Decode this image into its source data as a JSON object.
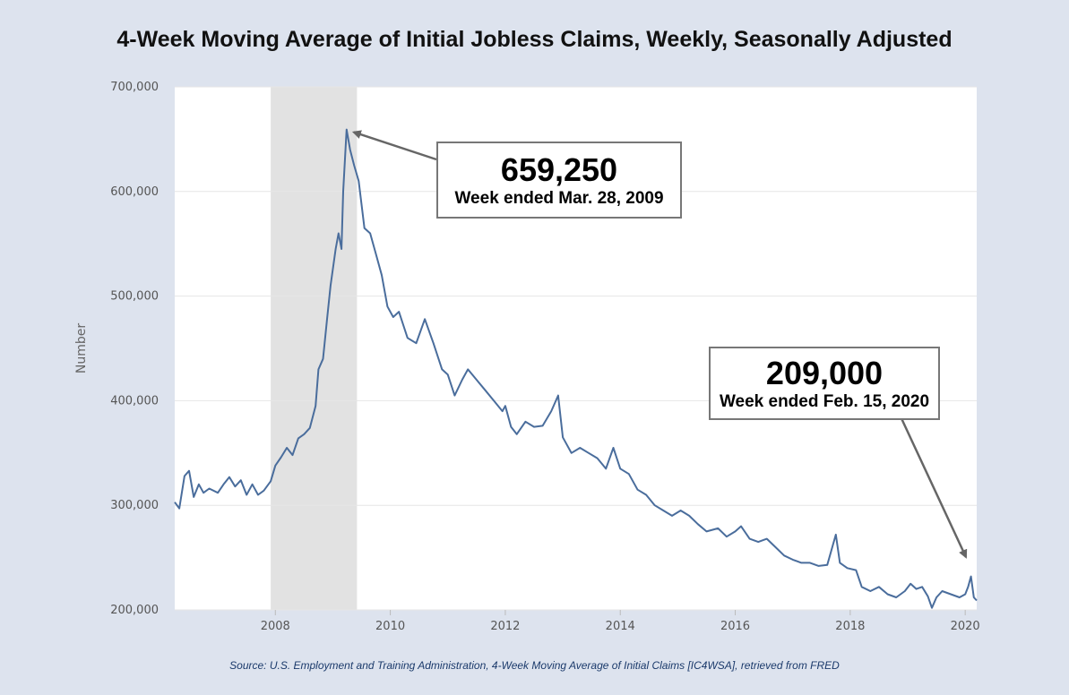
{
  "chart_data": {
    "type": "line",
    "title": "4-Week Moving Average of Initial Jobless Claims, Weekly, Seasonally Adjusted",
    "ylabel": "Number",
    "xlabel": "",
    "xlim": [
      2006.25,
      2020.2
    ],
    "ylim": [
      200000,
      700000
    ],
    "y_ticks": [
      200000,
      300000,
      400000,
      500000,
      600000,
      700000
    ],
    "y_tick_labels": [
      "200,000",
      "300,000",
      "400,000",
      "500,000",
      "600,000",
      "700,000"
    ],
    "x_ticks": [
      2008,
      2010,
      2012,
      2014,
      2016,
      2018,
      2020
    ],
    "x_tick_labels": [
      "2008",
      "2010",
      "2012",
      "2014",
      "2016",
      "2018",
      "2020"
    ],
    "grid": "horizontal",
    "line_color": "#4a6d9c",
    "recession_shading": {
      "start": 2007.92,
      "end": 2009.42,
      "color": "#e2e2e2"
    },
    "series": [
      {
        "values": [
          [
            2006.25,
            303000
          ],
          [
            2006.33,
            297000
          ],
          [
            2006.42,
            328000
          ],
          [
            2006.5,
            333000
          ],
          [
            2006.58,
            308000
          ],
          [
            2006.67,
            320000
          ],
          [
            2006.75,
            312000
          ],
          [
            2006.85,
            316000
          ],
          [
            2007.0,
            312000
          ],
          [
            2007.1,
            320000
          ],
          [
            2007.2,
            327000
          ],
          [
            2007.3,
            318000
          ],
          [
            2007.4,
            324000
          ],
          [
            2007.5,
            310000
          ],
          [
            2007.6,
            320000
          ],
          [
            2007.7,
            310000
          ],
          [
            2007.8,
            314000
          ],
          [
            2007.92,
            323000
          ],
          [
            2008.0,
            338000
          ],
          [
            2008.1,
            346000
          ],
          [
            2008.2,
            355000
          ],
          [
            2008.3,
            348000
          ],
          [
            2008.4,
            364000
          ],
          [
            2008.5,
            368000
          ],
          [
            2008.6,
            374000
          ],
          [
            2008.7,
            395000
          ],
          [
            2008.75,
            430000
          ],
          [
            2008.83,
            440000
          ],
          [
            2008.9,
            478000
          ],
          [
            2008.96,
            510000
          ],
          [
            2009.05,
            545000
          ],
          [
            2009.1,
            560000
          ],
          [
            2009.15,
            545000
          ],
          [
            2009.18,
            600000
          ],
          [
            2009.24,
            659250
          ],
          [
            2009.3,
            640000
          ],
          [
            2009.37,
            625000
          ],
          [
            2009.45,
            610000
          ],
          [
            2009.55,
            565000
          ],
          [
            2009.65,
            560000
          ],
          [
            2009.75,
            540000
          ],
          [
            2009.85,
            520000
          ],
          [
            2009.95,
            490000
          ],
          [
            2010.05,
            480000
          ],
          [
            2010.15,
            485000
          ],
          [
            2010.3,
            460000
          ],
          [
            2010.45,
            455000
          ],
          [
            2010.6,
            478000
          ],
          [
            2010.75,
            455000
          ],
          [
            2010.9,
            430000
          ],
          [
            2011.0,
            425000
          ],
          [
            2011.12,
            405000
          ],
          [
            2011.25,
            420000
          ],
          [
            2011.35,
            430000
          ],
          [
            2011.5,
            420000
          ],
          [
            2011.65,
            410000
          ],
          [
            2011.8,
            400000
          ],
          [
            2011.95,
            390000
          ],
          [
            2012.0,
            395000
          ],
          [
            2012.1,
            375000
          ],
          [
            2012.2,
            368000
          ],
          [
            2012.35,
            380000
          ],
          [
            2012.5,
            375000
          ],
          [
            2012.65,
            376000
          ],
          [
            2012.8,
            390000
          ],
          [
            2012.92,
            405000
          ],
          [
            2013.0,
            365000
          ],
          [
            2013.15,
            350000
          ],
          [
            2013.3,
            355000
          ],
          [
            2013.45,
            350000
          ],
          [
            2013.6,
            345000
          ],
          [
            2013.75,
            335000
          ],
          [
            2013.88,
            355000
          ],
          [
            2014.0,
            335000
          ],
          [
            2014.15,
            330000
          ],
          [
            2014.3,
            315000
          ],
          [
            2014.45,
            310000
          ],
          [
            2014.6,
            300000
          ],
          [
            2014.75,
            295000
          ],
          [
            2014.9,
            290000
          ],
          [
            2015.05,
            295000
          ],
          [
            2015.2,
            290000
          ],
          [
            2015.35,
            282000
          ],
          [
            2015.5,
            275000
          ],
          [
            2015.7,
            278000
          ],
          [
            2015.85,
            270000
          ],
          [
            2016.0,
            275000
          ],
          [
            2016.1,
            280000
          ],
          [
            2016.25,
            268000
          ],
          [
            2016.4,
            265000
          ],
          [
            2016.55,
            268000
          ],
          [
            2016.7,
            260000
          ],
          [
            2016.85,
            252000
          ],
          [
            2017.0,
            248000
          ],
          [
            2017.15,
            245000
          ],
          [
            2017.3,
            245000
          ],
          [
            2017.45,
            242000
          ],
          [
            2017.6,
            243000
          ],
          [
            2017.75,
            272000
          ],
          [
            2017.82,
            245000
          ],
          [
            2017.95,
            240000
          ],
          [
            2018.1,
            238000
          ],
          [
            2018.2,
            222000
          ],
          [
            2018.35,
            218000
          ],
          [
            2018.5,
            222000
          ],
          [
            2018.65,
            215000
          ],
          [
            2018.8,
            212000
          ],
          [
            2018.95,
            218000
          ],
          [
            2019.05,
            225000
          ],
          [
            2019.15,
            220000
          ],
          [
            2019.25,
            222000
          ],
          [
            2019.35,
            213000
          ],
          [
            2019.42,
            202000
          ],
          [
            2019.5,
            212000
          ],
          [
            2019.6,
            218000
          ],
          [
            2019.75,
            215000
          ],
          [
            2019.9,
            212000
          ],
          [
            2020.0,
            215000
          ],
          [
            2020.05,
            222000
          ],
          [
            2020.1,
            232000
          ],
          [
            2020.15,
            212000
          ],
          [
            2020.2,
            209000
          ]
        ]
      }
    ],
    "annotations": [
      {
        "value_label": "659,250",
        "date_label": "Week ended Mar. 28, 2009",
        "x": 2009.24,
        "y": 659250
      },
      {
        "value_label": "209,000",
        "date_label": "Week ended Feb. 15, 2020",
        "x": 2020.12,
        "y": 209000
      }
    ]
  },
  "source": "Source: U.S. Employment and Training Administration, 4-Week Moving Average of Initial Claims [IC4WSA], retrieved from FRED"
}
